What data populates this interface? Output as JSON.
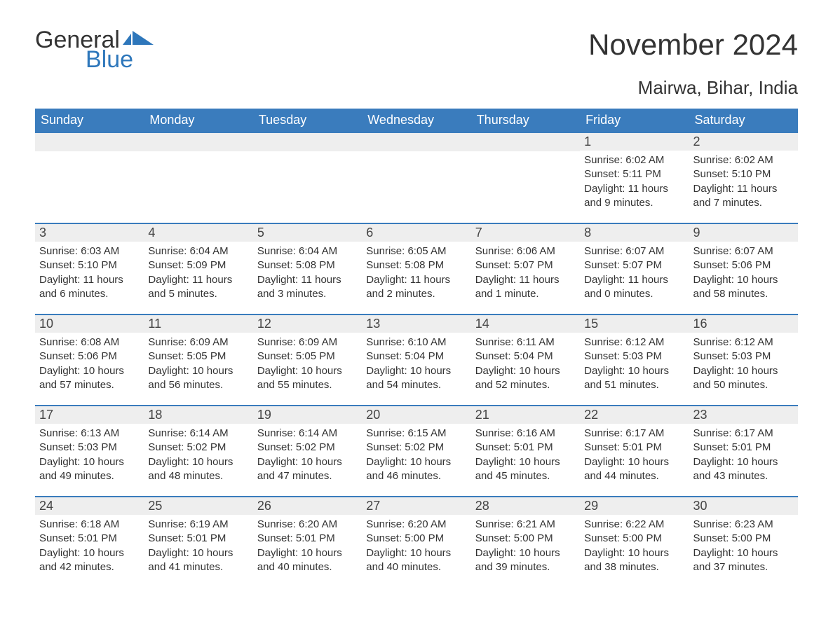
{
  "logo": {
    "general": "General",
    "blue": "Blue",
    "flag_color": "#2e77bb"
  },
  "title": "November 2024",
  "subtitle": "Mairwa, Bihar, India",
  "colors": {
    "header_bg": "#3a7cbd",
    "header_text": "#ffffff",
    "daynum_bg": "#eeeeee",
    "cell_border": "#3a7cbd",
    "body_text": "#333333",
    "page_bg": "#ffffff"
  },
  "typography": {
    "title_fontsize": 42,
    "subtitle_fontsize": 26,
    "header_fontsize": 18,
    "daynum_fontsize": 18,
    "body_fontsize": 15,
    "font_family": "Arial"
  },
  "calendar": {
    "type": "table",
    "columns": [
      "Sunday",
      "Monday",
      "Tuesday",
      "Wednesday",
      "Thursday",
      "Friday",
      "Saturday"
    ],
    "weeks": [
      [
        null,
        null,
        null,
        null,
        null,
        {
          "day": "1",
          "sunrise": "Sunrise: 6:02 AM",
          "sunset": "Sunset: 5:11 PM",
          "daylight": "Daylight: 11 hours and 9 minutes."
        },
        {
          "day": "2",
          "sunrise": "Sunrise: 6:02 AM",
          "sunset": "Sunset: 5:10 PM",
          "daylight": "Daylight: 11 hours and 7 minutes."
        }
      ],
      [
        {
          "day": "3",
          "sunrise": "Sunrise: 6:03 AM",
          "sunset": "Sunset: 5:10 PM",
          "daylight": "Daylight: 11 hours and 6 minutes."
        },
        {
          "day": "4",
          "sunrise": "Sunrise: 6:04 AM",
          "sunset": "Sunset: 5:09 PM",
          "daylight": "Daylight: 11 hours and 5 minutes."
        },
        {
          "day": "5",
          "sunrise": "Sunrise: 6:04 AM",
          "sunset": "Sunset: 5:08 PM",
          "daylight": "Daylight: 11 hours and 3 minutes."
        },
        {
          "day": "6",
          "sunrise": "Sunrise: 6:05 AM",
          "sunset": "Sunset: 5:08 PM",
          "daylight": "Daylight: 11 hours and 2 minutes."
        },
        {
          "day": "7",
          "sunrise": "Sunrise: 6:06 AM",
          "sunset": "Sunset: 5:07 PM",
          "daylight": "Daylight: 11 hours and 1 minute."
        },
        {
          "day": "8",
          "sunrise": "Sunrise: 6:07 AM",
          "sunset": "Sunset: 5:07 PM",
          "daylight": "Daylight: 11 hours and 0 minutes."
        },
        {
          "day": "9",
          "sunrise": "Sunrise: 6:07 AM",
          "sunset": "Sunset: 5:06 PM",
          "daylight": "Daylight: 10 hours and 58 minutes."
        }
      ],
      [
        {
          "day": "10",
          "sunrise": "Sunrise: 6:08 AM",
          "sunset": "Sunset: 5:06 PM",
          "daylight": "Daylight: 10 hours and 57 minutes."
        },
        {
          "day": "11",
          "sunrise": "Sunrise: 6:09 AM",
          "sunset": "Sunset: 5:05 PM",
          "daylight": "Daylight: 10 hours and 56 minutes."
        },
        {
          "day": "12",
          "sunrise": "Sunrise: 6:09 AM",
          "sunset": "Sunset: 5:05 PM",
          "daylight": "Daylight: 10 hours and 55 minutes."
        },
        {
          "day": "13",
          "sunrise": "Sunrise: 6:10 AM",
          "sunset": "Sunset: 5:04 PM",
          "daylight": "Daylight: 10 hours and 54 minutes."
        },
        {
          "day": "14",
          "sunrise": "Sunrise: 6:11 AM",
          "sunset": "Sunset: 5:04 PM",
          "daylight": "Daylight: 10 hours and 52 minutes."
        },
        {
          "day": "15",
          "sunrise": "Sunrise: 6:12 AM",
          "sunset": "Sunset: 5:03 PM",
          "daylight": "Daylight: 10 hours and 51 minutes."
        },
        {
          "day": "16",
          "sunrise": "Sunrise: 6:12 AM",
          "sunset": "Sunset: 5:03 PM",
          "daylight": "Daylight: 10 hours and 50 minutes."
        }
      ],
      [
        {
          "day": "17",
          "sunrise": "Sunrise: 6:13 AM",
          "sunset": "Sunset: 5:03 PM",
          "daylight": "Daylight: 10 hours and 49 minutes."
        },
        {
          "day": "18",
          "sunrise": "Sunrise: 6:14 AM",
          "sunset": "Sunset: 5:02 PM",
          "daylight": "Daylight: 10 hours and 48 minutes."
        },
        {
          "day": "19",
          "sunrise": "Sunrise: 6:14 AM",
          "sunset": "Sunset: 5:02 PM",
          "daylight": "Daylight: 10 hours and 47 minutes."
        },
        {
          "day": "20",
          "sunrise": "Sunrise: 6:15 AM",
          "sunset": "Sunset: 5:02 PM",
          "daylight": "Daylight: 10 hours and 46 minutes."
        },
        {
          "day": "21",
          "sunrise": "Sunrise: 6:16 AM",
          "sunset": "Sunset: 5:01 PM",
          "daylight": "Daylight: 10 hours and 45 minutes."
        },
        {
          "day": "22",
          "sunrise": "Sunrise: 6:17 AM",
          "sunset": "Sunset: 5:01 PM",
          "daylight": "Daylight: 10 hours and 44 minutes."
        },
        {
          "day": "23",
          "sunrise": "Sunrise: 6:17 AM",
          "sunset": "Sunset: 5:01 PM",
          "daylight": "Daylight: 10 hours and 43 minutes."
        }
      ],
      [
        {
          "day": "24",
          "sunrise": "Sunrise: 6:18 AM",
          "sunset": "Sunset: 5:01 PM",
          "daylight": "Daylight: 10 hours and 42 minutes."
        },
        {
          "day": "25",
          "sunrise": "Sunrise: 6:19 AM",
          "sunset": "Sunset: 5:01 PM",
          "daylight": "Daylight: 10 hours and 41 minutes."
        },
        {
          "day": "26",
          "sunrise": "Sunrise: 6:20 AM",
          "sunset": "Sunset: 5:01 PM",
          "daylight": "Daylight: 10 hours and 40 minutes."
        },
        {
          "day": "27",
          "sunrise": "Sunrise: 6:20 AM",
          "sunset": "Sunset: 5:00 PM",
          "daylight": "Daylight: 10 hours and 40 minutes."
        },
        {
          "day": "28",
          "sunrise": "Sunrise: 6:21 AM",
          "sunset": "Sunset: 5:00 PM",
          "daylight": "Daylight: 10 hours and 39 minutes."
        },
        {
          "day": "29",
          "sunrise": "Sunrise: 6:22 AM",
          "sunset": "Sunset: 5:00 PM",
          "daylight": "Daylight: 10 hours and 38 minutes."
        },
        {
          "day": "30",
          "sunrise": "Sunrise: 6:23 AM",
          "sunset": "Sunset: 5:00 PM",
          "daylight": "Daylight: 10 hours and 37 minutes."
        }
      ]
    ]
  }
}
